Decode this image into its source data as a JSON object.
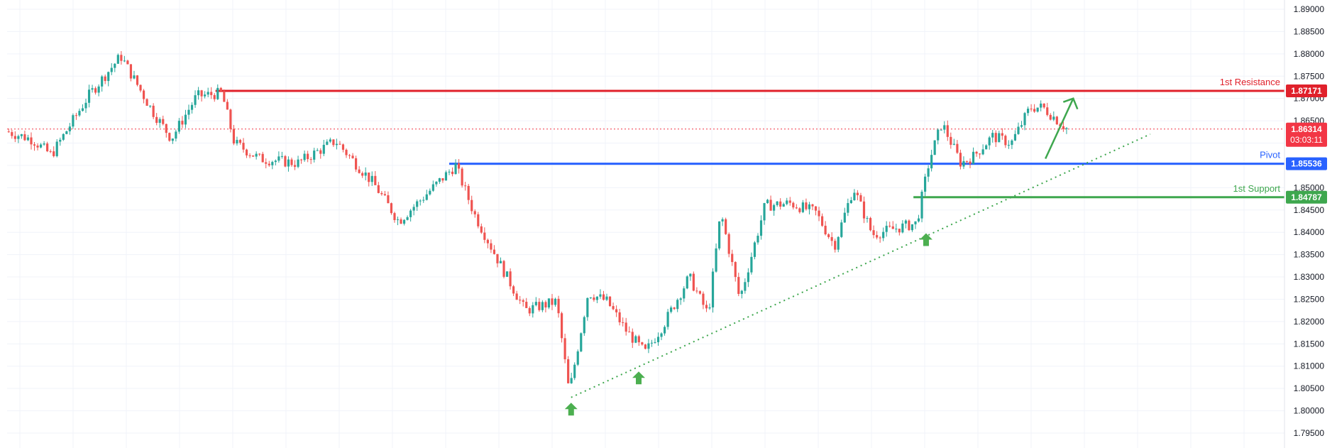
{
  "chart_data": {
    "type": "candlestick",
    "y_axis": {
      "min": 1.7925,
      "max": 1.8915,
      "position": "right",
      "ticks": [
        "1.89000",
        "1.88500",
        "1.88000",
        "1.87500",
        "1.87000",
        "1.86500",
        "1.86000",
        "1.85500",
        "1.85000",
        "1.84500",
        "1.84000",
        "1.83500",
        "1.83000",
        "1.82500",
        "1.82000",
        "1.81500",
        "1.81000",
        "1.80500",
        "1.80000",
        "1.79500"
      ]
    },
    "grid": true,
    "levels": [
      {
        "key": "resistance",
        "label": "1st Resistance",
        "value": 1.87171,
        "value_text": "1.87171",
        "color": "#e0212b"
      },
      {
        "key": "pivot",
        "label": "Pivot",
        "value": 1.85536,
        "value_text": "1.85536",
        "color": "#2962ff"
      },
      {
        "key": "support",
        "label": "1st Support",
        "value": 1.84787,
        "value_text": "1.84787",
        "color": "#3ea74e"
      }
    ],
    "current_price": {
      "value": 1.86314,
      "value_text": "1.86314",
      "countdown": "03:03:11",
      "color": "#f23645"
    },
    "trendline": {
      "style": "dotted",
      "color": "#3ea74e",
      "from_index": 8,
      "to_index": 74
    },
    "arrows": [
      {
        "type": "up",
        "color": "#4caf50",
        "at_index": 8
      },
      {
        "type": "up",
        "color": "#4caf50",
        "at_index": 11
      },
      {
        "type": "up",
        "color": "#4caf50",
        "at_index": 41
      },
      {
        "type": "projection",
        "color": "#3ea74e",
        "from_index": 74,
        "to_index": 78
      }
    ],
    "anchors": [
      {
        "x": 0,
        "y": 1.8626
      },
      {
        "x": 0.02,
        "y": 1.8608
      },
      {
        "x": 0.035,
        "y": 1.8573
      },
      {
        "x": 0.05,
        "y": 1.8641
      },
      {
        "x": 0.065,
        "y": 1.8708
      },
      {
        "x": 0.09,
        "y": 1.8795
      },
      {
        "x": 0.115,
        "y": 1.8672
      },
      {
        "x": 0.13,
        "y": 1.861
      },
      {
        "x": 0.15,
        "y": 1.8705
      },
      {
        "x": 0.17,
        "y": 1.8712
      },
      {
        "x": 0.18,
        "y": 1.86
      },
      {
        "x": 0.2,
        "y": 1.8565
      },
      {
        "x": 0.23,
        "y": 1.8555
      },
      {
        "x": 0.26,
        "y": 1.8605
      },
      {
        "x": 0.29,
        "y": 1.851
      },
      {
        "x": 0.31,
        "y": 1.8425
      },
      {
        "x": 0.33,
        "y": 1.848
      },
      {
        "x": 0.355,
        "y": 1.855
      },
      {
        "x": 0.37,
        "y": 1.844
      },
      {
        "x": 0.39,
        "y": 1.833
      },
      {
        "x": 0.41,
        "y": 1.8225
      },
      {
        "x": 0.435,
        "y": 1.8245
      },
      {
        "x": 0.445,
        "y": 1.804
      },
      {
        "x": 0.46,
        "y": 1.8265
      },
      {
        "x": 0.475,
        "y": 1.8245
      },
      {
        "x": 0.49,
        "y": 1.818
      },
      {
        "x": 0.505,
        "y": 1.813
      },
      {
        "x": 0.52,
        "y": 1.8195
      },
      {
        "x": 0.54,
        "y": 1.83
      },
      {
        "x": 0.555,
        "y": 1.8215
      },
      {
        "x": 0.565,
        "y": 1.8445
      },
      {
        "x": 0.58,
        "y": 1.825
      },
      {
        "x": 0.6,
        "y": 1.846
      },
      {
        "x": 0.62,
        "y": 1.8465
      },
      {
        "x": 0.64,
        "y": 1.8445
      },
      {
        "x": 0.655,
        "y": 1.837
      },
      {
        "x": 0.67,
        "y": 1.85
      },
      {
        "x": 0.685,
        "y": 1.8395
      },
      {
        "x": 0.705,
        "y": 1.841
      },
      {
        "x": 0.72,
        "y": 1.842
      },
      {
        "x": 0.73,
        "y": 1.856
      },
      {
        "x": 0.74,
        "y": 1.8645
      },
      {
        "x": 0.755,
        "y": 1.8555
      },
      {
        "x": 0.765,
        "y": 1.857
      },
      {
        "x": 0.78,
        "y": 1.8615
      },
      {
        "x": 0.795,
        "y": 1.86
      },
      {
        "x": 0.81,
        "y": 1.868
      },
      {
        "x": 0.82,
        "y": 1.868
      },
      {
        "x": 0.84,
        "y": 1.863
      }
    ],
    "candle_count": 330
  }
}
